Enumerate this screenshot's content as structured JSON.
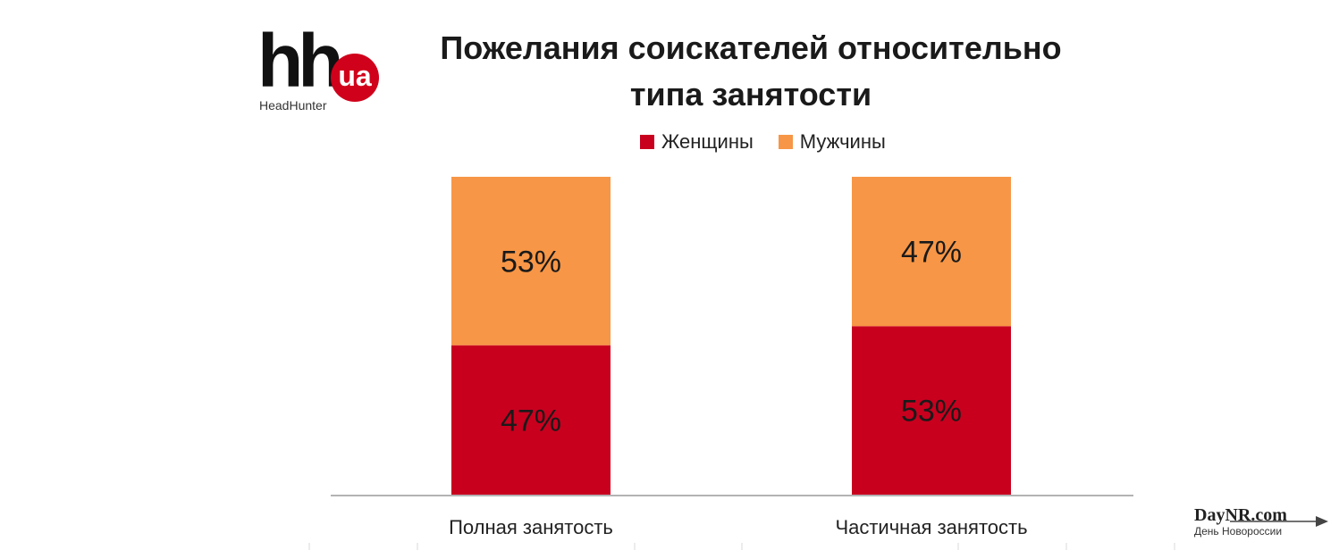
{
  "logo": {
    "brand": "hh",
    "badge": "ua",
    "subtitle": "HeadHunter"
  },
  "watermark": {
    "main": "DayNR.com",
    "sub": "День Новороссии"
  },
  "chart_data": {
    "type": "bar",
    "stacked": true,
    "percent_stacked": true,
    "title": "Пожелания соискателей относительно типа занятости",
    "title_lines": [
      "Пожелания соискателей относительно",
      "типа занятости"
    ],
    "categories": [
      "Полная занятость",
      "Частичная занятость"
    ],
    "series": [
      {
        "name": "Женщины",
        "values": [
          47,
          53
        ],
        "labels": [
          "47%",
          "53%"
        ],
        "color": "#c8001e"
      },
      {
        "name": "Мужчины",
        "values": [
          53,
          47
        ],
        "labels": [
          "53%",
          "47%"
        ],
        "color": "#f79646"
      }
    ],
    "ylim": [
      0,
      100
    ],
    "legend": "top",
    "grid": false
  }
}
